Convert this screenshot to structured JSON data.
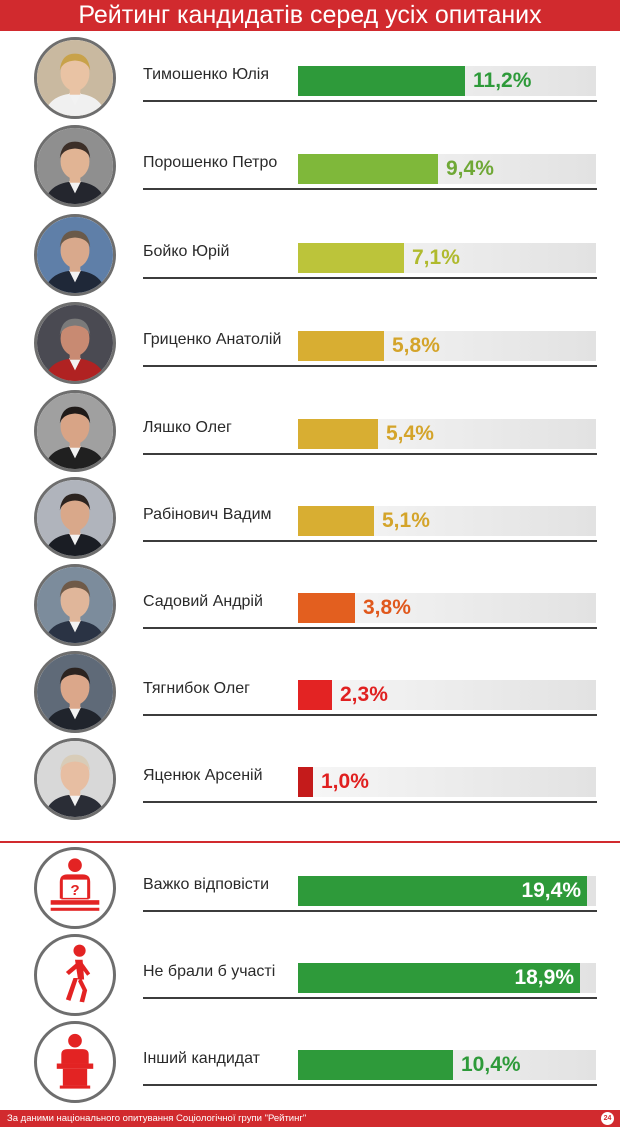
{
  "title": "Рейтинг кандидатів серед усіх опитаних",
  "chart_data": {
    "type": "bar",
    "orientation": "horizontal",
    "title": "Рейтинг кандидатів серед усіх опитаних",
    "xlim": [
      0,
      20
    ],
    "unit": "%",
    "categories": [
      "Тимошенко Юлія",
      "Порошенко Петро",
      "Бойко Юрій",
      "Гриценко Анатолій",
      "Ляшко Олег",
      "Рабінович Вадим",
      "Садовий Андрій",
      "Тягнибок Олег",
      "Яценюк Арсеній",
      "Важко відповісти",
      "Не брали б участі",
      "Інший кандидат"
    ],
    "values": [
      11.2,
      9.4,
      7.1,
      5.8,
      5.4,
      5.1,
      3.8,
      2.3,
      1.0,
      19.4,
      18.9,
      10.4
    ],
    "value_labels": [
      "11,2%",
      "9,4%",
      "7,1%",
      "5,8%",
      "5,4%",
      "5,1%",
      "3,8%",
      "2,3%",
      "1,0%",
      "19,4%",
      "18,9%",
      "10,4%"
    ],
    "colors": [
      "#2e9a3a",
      "#7fb83a",
      "#bcc43a",
      "#d8ae32",
      "#d8ae32",
      "#d8ae32",
      "#e35f1f",
      "#e32323",
      "#c41b1b",
      "#2e9a3a",
      "#2e9a3a",
      "#2e9a3a"
    ],
    "value_text_colors": [
      "#2e9a3a",
      "#6fa836",
      "#b0ba2e",
      "#d4a42a",
      "#d4a42a",
      "#d4a42a",
      "#e0581c",
      "#e02020",
      "#e02020",
      "#ffffff",
      "#ffffff",
      "#2e9a3a"
    ],
    "icons": [
      "photo",
      "photo",
      "photo",
      "photo",
      "photo",
      "photo",
      "photo",
      "photo",
      "photo",
      "question-reader-icon",
      "walking-person-icon",
      "person-at-podium-icon"
    ]
  },
  "footer": {
    "source": "За даними національного опитування Соціологічної групи \"Рейтинг\"",
    "logo_text": "24"
  }
}
